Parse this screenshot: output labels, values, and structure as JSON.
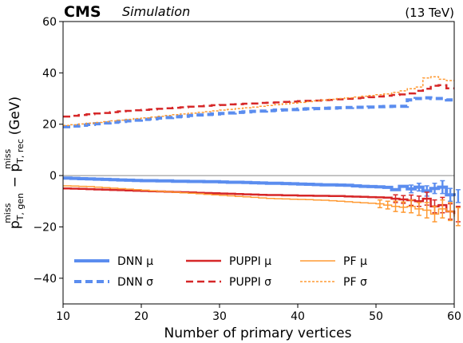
{
  "header": {
    "experiment": "CMS",
    "status": "Simulation",
    "energy": "(13 TeV)"
  },
  "chart_data": {
    "type": "line",
    "xlabel": "Number of primary vertices",
    "ylabel_main": "p",
    "ylabel_sup1": "miss",
    "ylabel_sub1": "T, gen",
    "ylabel_minus": " − p",
    "ylabel_sup2": "miss",
    "ylabel_sub2": "T, rec",
    "ylabel_unit": " (GeV)",
    "xlim": [
      10,
      60
    ],
    "ylim": [
      -50,
      60
    ],
    "xticks": [
      10,
      20,
      30,
      40,
      50,
      60
    ],
    "yticks": [
      -40,
      -20,
      0,
      20,
      40,
      60
    ],
    "ytick_labels": [
      "−40",
      "−20",
      "0",
      "20",
      "40",
      "60"
    ],
    "reference_line": 0,
    "x": [
      10,
      11,
      12,
      13,
      14,
      15,
      16,
      17,
      18,
      19,
      20,
      21,
      22,
      23,
      24,
      25,
      26,
      27,
      28,
      29,
      30,
      31,
      32,
      33,
      34,
      35,
      36,
      37,
      38,
      39,
      40,
      41,
      42,
      43,
      44,
      45,
      46,
      47,
      48,
      49,
      50,
      51,
      52,
      53,
      54,
      55,
      56,
      57,
      58,
      59,
      60
    ],
    "series": [
      {
        "name": "DNN μ",
        "color": "#5b8def",
        "dash": "solid",
        "width": 4,
        "values": [
          -1.0,
          -1.1,
          -1.2,
          -1.3,
          -1.4,
          -1.5,
          -1.6,
          -1.7,
          -1.8,
          -1.9,
          -2.0,
          -2.0,
          -2.1,
          -2.1,
          -2.2,
          -2.2,
          -2.3,
          -2.3,
          -2.4,
          -2.4,
          -2.5,
          -2.6,
          -2.6,
          -2.7,
          -2.8,
          -2.9,
          -3.0,
          -3.0,
          -3.1,
          -3.2,
          -3.3,
          -3.4,
          -3.5,
          -3.6,
          -3.6,
          -3.7,
          -3.8,
          -4.0,
          -4.2,
          -4.3,
          -4.4,
          -4.6,
          -5.5,
          -4.2,
          -5.2,
          -4.5,
          -6.0,
          -5.0,
          -4.5,
          -7.5,
          -8.0
        ],
        "errors": [
          0,
          0,
          0,
          0,
          0,
          0,
          0,
          0,
          0,
          0,
          0,
          0,
          0,
          0,
          0,
          0,
          0,
          0,
          0,
          0,
          0,
          0,
          0,
          0,
          0,
          0,
          0,
          0,
          0,
          0,
          0,
          0,
          0,
          0,
          0,
          0,
          0,
          0,
          0,
          0,
          0,
          0,
          0,
          0,
          1.5,
          1.5,
          2.0,
          2.0,
          2.5,
          2.5,
          2.5
        ]
      },
      {
        "name": "DNN σ",
        "color": "#5b8def",
        "dash": "dashed",
        "width": 4,
        "values": [
          19.0,
          19.3,
          19.6,
          19.9,
          20.2,
          20.5,
          20.8,
          21.1,
          21.3,
          21.6,
          21.9,
          22.1,
          22.4,
          22.6,
          22.9,
          23.1,
          23.4,
          23.6,
          23.8,
          24.0,
          24.2,
          24.4,
          24.6,
          24.8,
          25.0,
          25.1,
          25.3,
          25.5,
          25.6,
          25.7,
          25.9,
          26.0,
          26.1,
          26.2,
          26.3,
          26.4,
          26.5,
          26.6,
          26.6,
          26.7,
          26.8,
          26.9,
          27.0,
          27.0,
          29.5,
          30.0,
          30.3,
          30.0,
          30.0,
          29.5,
          29.3
        ],
        "errors": []
      },
      {
        "name": "PUPPI μ",
        "color": "#d62728",
        "dash": "solid",
        "width": 2.5,
        "values": [
          -5.0,
          -5.1,
          -5.2,
          -5.3,
          -5.4,
          -5.5,
          -5.6,
          -5.7,
          -5.8,
          -5.9,
          -6.0,
          -6.1,
          -6.2,
          -6.3,
          -6.4,
          -6.5,
          -6.6,
          -6.7,
          -6.8,
          -6.9,
          -7.0,
          -7.1,
          -7.2,
          -7.3,
          -7.4,
          -7.5,
          -7.6,
          -7.6,
          -7.7,
          -7.7,
          -7.8,
          -7.8,
          -7.9,
          -7.9,
          -8.0,
          -8.0,
          -8.1,
          -8.2,
          -8.3,
          -8.4,
          -8.5,
          -8.6,
          -9.0,
          -9.3,
          -9.6,
          -10.0,
          -9.0,
          -12.0,
          -11.5,
          -14.0,
          -15.0
        ],
        "errors": [
          0,
          0,
          0,
          0,
          0,
          0,
          0,
          0,
          0,
          0,
          0,
          0,
          0,
          0,
          0,
          0,
          0,
          0,
          0,
          0,
          0,
          0,
          0,
          0,
          0,
          0,
          0,
          0,
          0,
          0,
          0,
          0,
          0,
          0,
          0,
          0,
          0,
          0,
          0,
          0,
          0,
          0,
          1.5,
          1.5,
          2.0,
          2.0,
          2.5,
          2.5,
          3.0,
          3.0,
          3.0
        ]
      },
      {
        "name": "PUPPI σ",
        "color": "#d62728",
        "dash": "dashed",
        "width": 2.5,
        "values": [
          23.0,
          23.3,
          23.6,
          23.9,
          24.2,
          24.4,
          24.7,
          25.0,
          25.2,
          25.4,
          25.6,
          25.8,
          26.0,
          26.2,
          26.4,
          26.6,
          26.8,
          27.0,
          27.2,
          27.4,
          27.5,
          27.7,
          27.8,
          28.0,
          28.1,
          28.3,
          28.4,
          28.5,
          28.7,
          28.8,
          29.0,
          29.1,
          29.2,
          29.4,
          29.5,
          29.7,
          29.9,
          30.1,
          30.3,
          30.5,
          30.8,
          31.1,
          31.4,
          31.6,
          32.0,
          33.0,
          33.8,
          35.0,
          35.2,
          34.0,
          34.0
        ],
        "errors": []
      },
      {
        "name": "PF μ",
        "color": "#ff9a33",
        "dash": "solid",
        "width": 1.5,
        "values": [
          -4.0,
          -4.1,
          -4.2,
          -4.3,
          -4.5,
          -4.7,
          -4.9,
          -5.1,
          -5.3,
          -5.5,
          -5.7,
          -5.9,
          -6.1,
          -6.3,
          -6.5,
          -6.7,
          -6.9,
          -7.1,
          -7.3,
          -7.5,
          -7.7,
          -7.9,
          -8.1,
          -8.3,
          -8.5,
          -8.7,
          -8.9,
          -9.0,
          -9.1,
          -9.2,
          -9.3,
          -9.4,
          -9.5,
          -9.6,
          -9.8,
          -10.0,
          -10.2,
          -10.4,
          -10.6,
          -10.8,
          -11.0,
          -11.5,
          -12.0,
          -12.3,
          -12.0,
          -13.0,
          -13.5,
          -15.0,
          -13.0,
          -14.0,
          -16.0
        ],
        "errors": [
          0,
          0,
          0,
          0,
          0,
          0,
          0,
          0,
          0,
          0,
          0,
          0,
          0,
          0,
          0,
          0,
          0,
          0,
          0,
          0,
          0,
          0,
          0,
          0,
          0,
          0,
          0,
          0,
          0,
          0,
          0,
          0,
          0,
          0,
          0,
          0,
          0,
          0,
          0,
          0,
          1.5,
          1.5,
          2.0,
          2.0,
          2.5,
          2.5,
          3.0,
          3.0,
          3.5,
          3.5,
          3.5
        ]
      },
      {
        "name": "PF σ",
        "color": "#ff9a33",
        "dash": "dotted",
        "width": 1.5,
        "values": [
          19.5,
          19.8,
          20.1,
          20.4,
          20.7,
          21.0,
          21.3,
          21.6,
          21.9,
          22.2,
          22.5,
          22.8,
          23.1,
          23.4,
          23.7,
          24.0,
          24.3,
          24.6,
          24.9,
          25.2,
          25.5,
          25.8,
          26.1,
          26.4,
          26.7,
          27.0,
          27.3,
          27.6,
          27.9,
          28.2,
          28.5,
          28.8,
          29.1,
          29.4,
          29.7,
          30.0,
          30.3,
          30.6,
          30.9,
          31.2,
          31.5,
          31.8,
          32.4,
          33.0,
          33.8,
          34.5,
          38.0,
          38.5,
          37.5,
          37.0,
          37.0
        ],
        "errors": []
      }
    ],
    "legend": {
      "position": "bottom",
      "columns": 3
    }
  }
}
